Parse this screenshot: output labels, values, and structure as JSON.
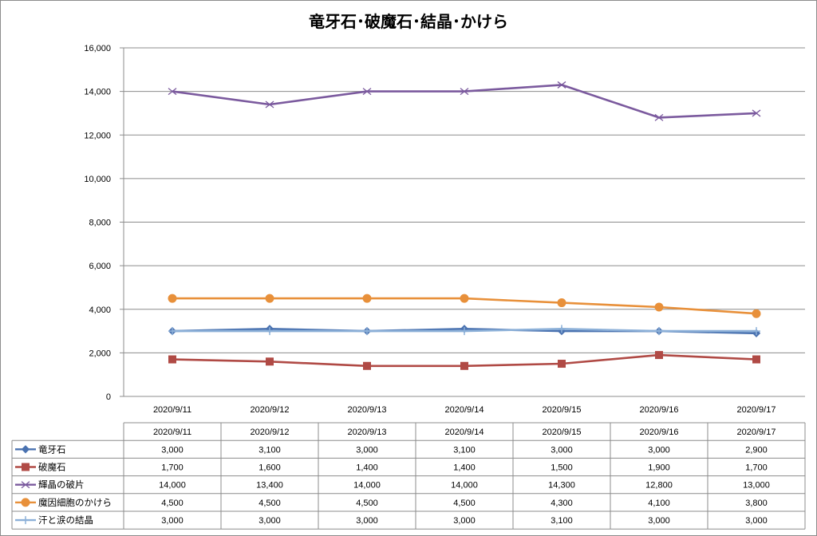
{
  "chart_data": {
    "type": "line",
    "title": "竜牙石･破魔石･結晶･かけら",
    "xlabel": "",
    "ylabel": "",
    "categories": [
      "2020/9/11",
      "2020/9/12",
      "2020/9/13",
      "2020/9/14",
      "2020/9/15",
      "2020/9/16",
      "2020/9/17"
    ],
    "ylim": [
      0,
      16000
    ],
    "yticks": [
      0,
      2000,
      4000,
      6000,
      8000,
      10000,
      12000,
      14000,
      16000
    ],
    "ytick_labels": [
      "0",
      "2,000",
      "4,000",
      "6,000",
      "8,000",
      "10,000",
      "12,000",
      "14,000",
      "16,000"
    ],
    "grid": true,
    "legend": "data-table",
    "series": [
      {
        "name": "竜牙石",
        "values": [
          3000,
          3100,
          3000,
          3100,
          3000,
          3000,
          2900
        ],
        "labels": [
          "3,000",
          "3,100",
          "3,000",
          "3,100",
          "3,000",
          "3,000",
          "2,900"
        ],
        "color": "#4a72b0",
        "marker": "diamond"
      },
      {
        "name": "破魔石",
        "values": [
          1700,
          1600,
          1400,
          1400,
          1500,
          1900,
          1700
        ],
        "labels": [
          "1,700",
          "1,600",
          "1,400",
          "1,400",
          "1,500",
          "1,900",
          "1,700"
        ],
        "color": "#b04a45",
        "marker": "square"
      },
      {
        "name": "輝晶の破片",
        "values": [
          14000,
          13400,
          14000,
          14000,
          14300,
          12800,
          13000
        ],
        "labels": [
          "14,000",
          "13,400",
          "14,000",
          "14,000",
          "14,300",
          "12,800",
          "13,000"
        ],
        "color": "#7b5a9e",
        "marker": "x"
      },
      {
        "name": "魔因細胞のかけら",
        "values": [
          4500,
          4500,
          4500,
          4500,
          4300,
          4100,
          3800
        ],
        "labels": [
          "4,500",
          "4,500",
          "4,500",
          "4,500",
          "4,300",
          "4,100",
          "3,800"
        ],
        "color": "#e8903a",
        "marker": "circle"
      },
      {
        "name": "汗と涙の結晶",
        "values": [
          3000,
          3000,
          3000,
          3000,
          3100,
          3000,
          3000
        ],
        "labels": [
          "3,000",
          "3,000",
          "3,000",
          "3,000",
          "3,100",
          "3,000",
          "3,000"
        ],
        "color": "#8cb0d8",
        "marker": "plus"
      }
    ]
  }
}
